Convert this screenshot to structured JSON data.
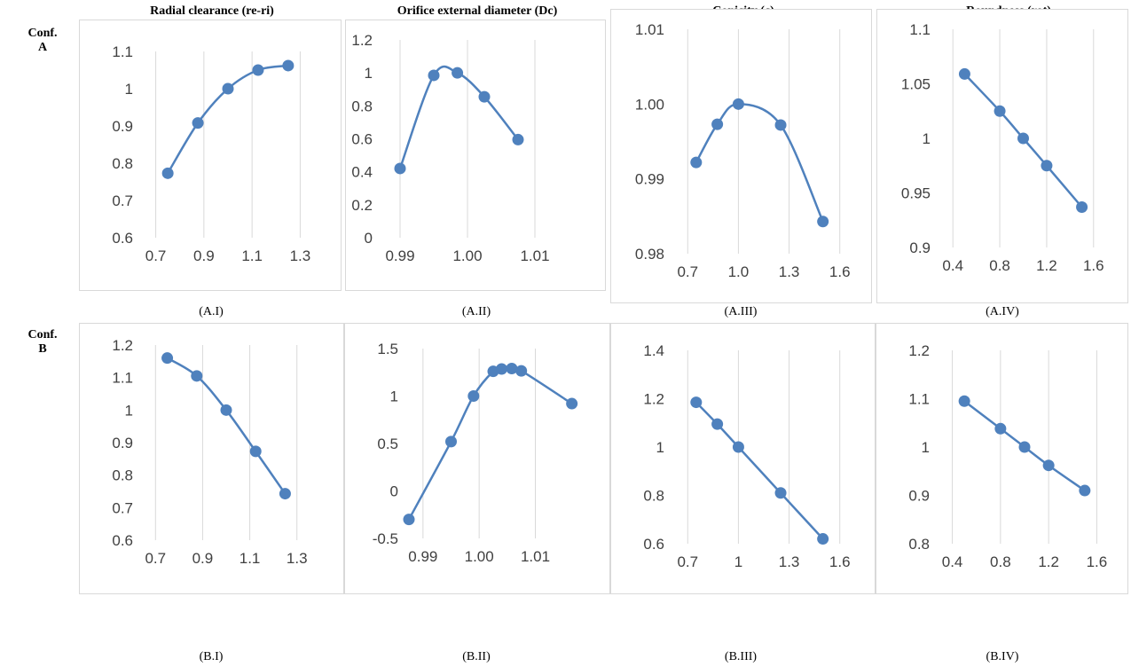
{
  "column_titles": [
    "Radial clearance (re-ri)",
    "Orifice external diameter (Dc)",
    "Conicity (c)",
    "Roundness (rot)"
  ],
  "row_labels": {
    "a": {
      "line1": "Conf.",
      "line2": "A"
    },
    "b": {
      "line1": "Conf.",
      "line2": "B"
    }
  },
  "series_color": "#4f81bd",
  "chart_data": [
    {
      "id": "A.I",
      "caption": "(A.I)",
      "type": "line",
      "x": [
        0.75,
        0.875,
        1.0,
        1.125,
        1.25
      ],
      "y": [
        0.773,
        0.908,
        1.0,
        1.05,
        1.062
      ],
      "xlim": [
        0.65,
        1.35
      ],
      "ylim": [
        0.6,
        1.1
      ],
      "xticks": [
        0.7,
        0.9,
        1.1,
        1.3
      ],
      "xtick_labels": [
        "0.7",
        "0.9",
        "1.1",
        "1.3"
      ],
      "yticks": [
        0.6,
        0.7,
        0.8,
        0.9,
        1.0,
        1.1
      ],
      "ytick_labels": [
        "0.6",
        "0.7",
        "0.8",
        "0.9",
        "1",
        "1.1"
      ],
      "grid": "vertical",
      "title": "",
      "xlabel": "",
      "ylabel": ""
    },
    {
      "id": "A.II",
      "caption": "(A.II)",
      "type": "line",
      "x": [
        0.99,
        0.995,
        0.9985,
        1.0025,
        1.0075
      ],
      "y": [
        0.42,
        0.985,
        1.0,
        0.855,
        0.595
      ],
      "xlim": [
        0.9875,
        1.0125
      ],
      "ylim": [
        0,
        1.2
      ],
      "xticks": [
        0.99,
        1.0,
        1.01
      ],
      "xtick_labels": [
        "0.99",
        "1.00",
        "1.01"
      ],
      "yticks": [
        0,
        0.2,
        0.4,
        0.6,
        0.8,
        1.0,
        1.2
      ],
      "ytick_labels": [
        "0",
        "0.2",
        "0.4",
        "0.6",
        "0.8",
        "1",
        "1.2"
      ],
      "grid": "vertical",
      "title": "",
      "xlabel": "",
      "ylabel": ""
    },
    {
      "id": "A.III",
      "caption": "(A.III)",
      "type": "line",
      "x": [
        0.75,
        0.875,
        1.0,
        1.25,
        1.5
      ],
      "y": [
        0.9922,
        0.9973,
        1.0,
        0.9972,
        0.9843
      ],
      "xlim": [
        0.625,
        1.675
      ],
      "ylim": [
        0.98,
        1.01
      ],
      "xticks": [
        0.7,
        1.0,
        1.3,
        1.6
      ],
      "xtick_labels": [
        "0.7",
        "1.0",
        "1.3",
        "1.6"
      ],
      "yticks": [
        0.98,
        0.99,
        1.0,
        1.01
      ],
      "ytick_labels": [
        "0.98",
        "0.99",
        "1.00",
        "1.01"
      ],
      "grid": "vertical",
      "title": "",
      "xlabel": "",
      "ylabel": ""
    },
    {
      "id": "A.IV",
      "caption": "(A.IV)",
      "type": "line",
      "x": [
        0.5,
        0.8,
        1.0,
        1.2,
        1.5
      ],
      "y": [
        1.059,
        1.025,
        1.0,
        0.975,
        0.937
      ],
      "xlim": [
        0.3,
        1.7
      ],
      "ylim": [
        0.9,
        1.1
      ],
      "xticks": [
        0.4,
        0.8,
        1.2,
        1.6
      ],
      "xtick_labels": [
        "0.4",
        "0.8",
        "1.2",
        "1.6"
      ],
      "yticks": [
        0.9,
        0.95,
        1.0,
        1.05,
        1.1
      ],
      "ytick_labels": [
        "0.9",
        "0.95",
        "1",
        "1.05",
        "1.1"
      ],
      "grid": "vertical",
      "title": "",
      "xlabel": "",
      "ylabel": ""
    },
    {
      "id": "B.I",
      "caption": "(B.I)",
      "type": "line",
      "x": [
        0.75,
        0.875,
        1.0,
        1.125,
        1.25
      ],
      "y": [
        1.16,
        1.105,
        1.0,
        0.873,
        0.743
      ],
      "xlim": [
        0.65,
        1.35
      ],
      "ylim": [
        0.6,
        1.2
      ],
      "xticks": [
        0.7,
        0.9,
        1.1,
        1.3
      ],
      "xtick_labels": [
        "0.7",
        "0.9",
        "1.1",
        "1.3"
      ],
      "yticks": [
        0.6,
        0.7,
        0.8,
        0.9,
        1.0,
        1.1,
        1.2
      ],
      "ytick_labels": [
        "0.6",
        "0.7",
        "0.8",
        "0.9",
        "1",
        "1.1",
        "1.2"
      ],
      "grid": "vertical",
      "title": "",
      "xlabel": "",
      "ylabel": ""
    },
    {
      "id": "B.II",
      "caption": "(B.II)",
      "type": "line",
      "x": [
        0.9875,
        0.995,
        0.999,
        1.0025,
        1.004,
        1.0058,
        1.0075,
        1.0165
      ],
      "y": [
        -0.3,
        0.52,
        1.0,
        1.26,
        1.285,
        1.29,
        1.265,
        0.92
      ],
      "xlim": [
        0.9875,
        1.0175
      ],
      "ylim": [
        -0.5,
        1.5
      ],
      "xticks": [
        0.99,
        1.0,
        1.01
      ],
      "xtick_labels": [
        "0.99",
        "1.00",
        "1.01"
      ],
      "yticks": [
        -0.5,
        0,
        0.5,
        1.0,
        1.5
      ],
      "ytick_labels": [
        "-0.5",
        "0",
        "0.5",
        "1",
        "1.5"
      ],
      "grid": "vertical",
      "title": "",
      "xlabel": "",
      "ylabel": ""
    },
    {
      "id": "B.III",
      "caption": "(B.III)",
      "type": "line",
      "x": [
        0.75,
        0.875,
        1.0,
        1.25,
        1.5
      ],
      "y": [
        1.185,
        1.095,
        1.0,
        0.81,
        0.62
      ],
      "xlim": [
        0.625,
        1.675
      ],
      "ylim": [
        0.6,
        1.4
      ],
      "xticks": [
        0.7,
        1.0,
        1.3,
        1.6
      ],
      "xtick_labels": [
        "0.7",
        "1",
        "1.3",
        "1.6"
      ],
      "yticks": [
        0.6,
        0.8,
        1.0,
        1.2,
        1.4
      ],
      "ytick_labels": [
        "0.6",
        "0.8",
        "1",
        "1.2",
        "1.4"
      ],
      "grid": "vertical",
      "title": "",
      "xlabel": "",
      "ylabel": ""
    },
    {
      "id": "B.IV",
      "caption": "(B.IV)",
      "type": "line",
      "x": [
        0.5,
        0.8,
        1.0,
        1.2,
        1.5
      ],
      "y": [
        1.095,
        1.038,
        1.0,
        0.962,
        0.91
      ],
      "xlim": [
        0.3,
        1.7
      ],
      "ylim": [
        0.8,
        1.2
      ],
      "xticks": [
        0.4,
        0.8,
        1.2,
        1.6
      ],
      "xtick_labels": [
        "0.4",
        "0.8",
        "1.2",
        "1.6"
      ],
      "yticks": [
        0.8,
        0.9,
        1.0,
        1.1,
        1.2
      ],
      "ytick_labels": [
        "0.8",
        "0.9",
        "1",
        "1.1",
        "1.2"
      ],
      "grid": "vertical",
      "title": "",
      "xlabel": "",
      "ylabel": ""
    }
  ]
}
